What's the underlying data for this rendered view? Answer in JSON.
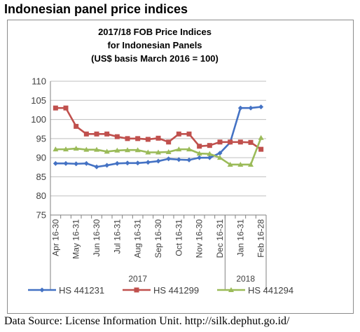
{
  "heading": "Indonesian panel price indices",
  "source": "Data Source: License Information Unit. http://silk.dephut.go.id/",
  "chart_data": {
    "type": "line",
    "title_lines": [
      "2017/18 FOB Price Indices",
      "for Indonesian Panels",
      "(US$ basis March 2016 = 100)"
    ],
    "categories": [
      "Apr 16-30",
      "",
      "May 16-31",
      "",
      "Jun 16-30",
      "",
      "Jul 16-31",
      "",
      "Aug 16-31",
      "",
      "Sep 16-30",
      "",
      "Oct 16-31",
      "",
      "Nov 16-30",
      "",
      "Dec 16-31",
      "",
      "Jan 16-31",
      "",
      "Feb 16-28"
    ],
    "tick_labels": [
      "Apr 16-30",
      "May 16-31",
      "Jun 16-30",
      "Jul 16-31",
      "Aug 16-31",
      "Sep 16-30",
      "Oct 16-31",
      "Nov 16-30",
      "Dec 16-31",
      "Jan 16-31",
      "Feb 16-28"
    ],
    "year_labels": [
      "2017",
      "2018"
    ],
    "ylim": [
      75,
      110
    ],
    "yticks": [
      75,
      80,
      85,
      90,
      95,
      100,
      105,
      110
    ],
    "grid": true,
    "legend_position": "bottom",
    "series": [
      {
        "name": "HS 441231",
        "color": "#4472c4",
        "marker": "diamond",
        "values": [
          88.5,
          88.5,
          88.4,
          88.5,
          87.6,
          88.0,
          88.5,
          88.6,
          88.6,
          88.8,
          89.1,
          89.7,
          89.5,
          89.4,
          90.0,
          90.0,
          91.2,
          94.0,
          103.0,
          103.0,
          103.3
        ]
      },
      {
        "name": "HS 441299",
        "color": "#c0504d",
        "marker": "square",
        "values": [
          103.0,
          103.0,
          98.2,
          96.2,
          96.2,
          96.2,
          95.5,
          95.0,
          95.0,
          94.8,
          95.1,
          94.1,
          96.2,
          96.2,
          93.0,
          93.2,
          94.1,
          94.1,
          94.1,
          94.0,
          92.2
        ]
      },
      {
        "name": "HS 441294",
        "color": "#9bbb59",
        "marker": "triangle",
        "values": [
          92.2,
          92.2,
          92.4,
          92.1,
          92.1,
          91.6,
          91.9,
          92.0,
          92.0,
          91.4,
          91.4,
          91.5,
          92.2,
          92.2,
          91.1,
          91.0,
          90.0,
          88.2,
          88.2,
          88.2,
          95.2
        ]
      }
    ]
  }
}
